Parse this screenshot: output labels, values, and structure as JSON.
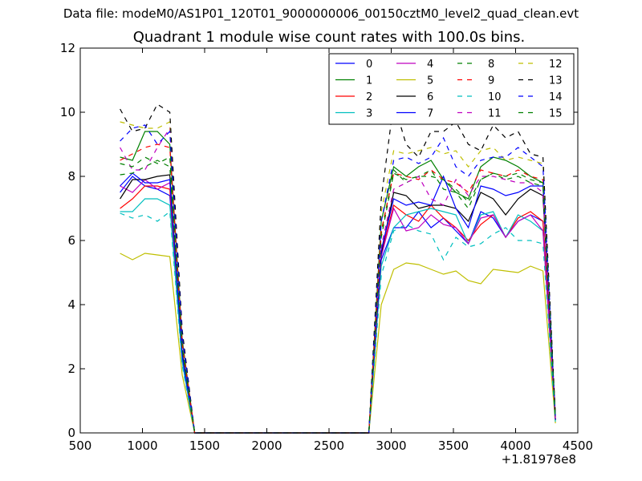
{
  "suptitle": "Data file: modeM0/AS1P01_120T01_9000000006_00150cztM0_level2_quad_clean.evt",
  "chart_data": {
    "type": "line",
    "title": "Quadrant 1 module wise count rates with 100.0s bins.",
    "xlabel": "",
    "ylabel": "",
    "x_offset_label": "+1.81978e8",
    "xlim": [
      500,
      4500
    ],
    "ylim": [
      0,
      12
    ],
    "xticks": [
      500,
      1000,
      1500,
      2000,
      2500,
      3000,
      3500,
      4000,
      4500
    ],
    "yticks": [
      0,
      2,
      4,
      6,
      8,
      10,
      12
    ],
    "grid": false,
    "legend_position": "top-right",
    "x": [
      820,
      920,
      1020,
      1120,
      1220,
      1320,
      1420,
      1520,
      1620,
      1720,
      1820,
      1920,
      2020,
      2120,
      2220,
      2320,
      2420,
      2520,
      2620,
      2720,
      2820,
      2920,
      3020,
      3120,
      3220,
      3320,
      3420,
      3520,
      3620,
      3720,
      3820,
      3920,
      4020,
      4120,
      4220,
      4320
    ],
    "series": [
      {
        "name": "0",
        "color": "#0000ff",
        "dash": "solid",
        "values": [
          7.5,
          8.0,
          7.7,
          7.6,
          7.4,
          2.4,
          0,
          0,
          0,
          0,
          0,
          0,
          0,
          0,
          0,
          0,
          0,
          0,
          0,
          0,
          0,
          5.4,
          6.4,
          6.4,
          6.9,
          6.4,
          6.7,
          6.3,
          5.9,
          6.9,
          6.7,
          6.1,
          6.6,
          6.8,
          6.6,
          0.4
        ]
      },
      {
        "name": "1",
        "color": "#008000",
        "dash": "solid",
        "values": [
          8.6,
          8.5,
          9.4,
          9.4,
          9.0,
          2.9,
          0,
          0,
          0,
          0,
          0,
          0,
          0,
          0,
          0,
          0,
          0,
          0,
          0,
          0,
          0,
          6.6,
          8.3,
          8.0,
          8.3,
          8.5,
          7.9,
          7.5,
          7.3,
          8.3,
          8.6,
          8.5,
          8.3,
          8.0,
          7.8,
          0.5
        ]
      },
      {
        "name": "2",
        "color": "#ff0000",
        "dash": "solid",
        "values": [
          7.0,
          7.3,
          7.7,
          7.7,
          7.6,
          2.3,
          0,
          0,
          0,
          0,
          0,
          0,
          0,
          0,
          0,
          0,
          0,
          0,
          0,
          0,
          0,
          5.6,
          7.1,
          6.8,
          6.6,
          7.1,
          6.7,
          6.4,
          6.0,
          6.5,
          6.8,
          6.1,
          6.7,
          6.9,
          6.6,
          0.4
        ]
      },
      {
        "name": "3",
        "color": "#00bfbf",
        "dash": "solid",
        "values": [
          6.9,
          6.9,
          7.3,
          7.3,
          7.1,
          2.2,
          0,
          0,
          0,
          0,
          0,
          0,
          0,
          0,
          0,
          0,
          0,
          0,
          0,
          0,
          0,
          5.2,
          6.4,
          6.8,
          6.9,
          7.0,
          6.9,
          6.8,
          5.9,
          6.8,
          6.9,
          6.1,
          6.8,
          6.6,
          6.3,
          0.4
        ]
      },
      {
        "name": "4",
        "color": "#bf00bf",
        "dash": "solid",
        "values": [
          7.7,
          7.5,
          7.9,
          7.6,
          7.8,
          2.4,
          0,
          0,
          0,
          0,
          0,
          0,
          0,
          0,
          0,
          0,
          0,
          0,
          0,
          0,
          0,
          5.5,
          7.0,
          6.3,
          6.4,
          6.8,
          6.5,
          6.4,
          5.9,
          6.7,
          6.8,
          6.1,
          6.6,
          6.8,
          6.3,
          0.4
        ]
      },
      {
        "name": "5",
        "color": "#bfbf00",
        "dash": "solid",
        "values": [
          5.6,
          5.4,
          5.6,
          5.55,
          5.5,
          1.8,
          0,
          0,
          0,
          0,
          0,
          0,
          0,
          0,
          0,
          0,
          0,
          0,
          0,
          0,
          0,
          4.0,
          5.1,
          5.3,
          5.25,
          5.1,
          4.95,
          5.05,
          4.75,
          4.65,
          5.1,
          5.05,
          5.0,
          5.2,
          5.05,
          0.3
        ]
      },
      {
        "name": "6",
        "color": "#000000",
        "dash": "solid",
        "values": [
          7.3,
          7.9,
          7.9,
          8.0,
          8.05,
          2.5,
          0,
          0,
          0,
          0,
          0,
          0,
          0,
          0,
          0,
          0,
          0,
          0,
          0,
          0,
          0,
          5.6,
          7.5,
          7.4,
          7.0,
          7.1,
          7.1,
          7.0,
          6.6,
          7.5,
          7.3,
          6.8,
          7.3,
          7.6,
          7.4,
          0.4
        ]
      },
      {
        "name": "7",
        "color": "#0000ff",
        "dash": "solid",
        "values": [
          7.7,
          8.1,
          7.8,
          7.8,
          7.9,
          2.4,
          0,
          0,
          0,
          0,
          0,
          0,
          0,
          0,
          0,
          0,
          0,
          0,
          0,
          0,
          0,
          5.7,
          7.3,
          7.1,
          7.2,
          7.1,
          8.0,
          7.0,
          6.4,
          7.7,
          7.6,
          7.4,
          7.5,
          7.7,
          7.7,
          0.4
        ]
      },
      {
        "name": "8",
        "color": "#008000",
        "dash": "dashed",
        "values": [
          8.05,
          8.1,
          8.3,
          8.5,
          8.3,
          2.6,
          0,
          0,
          0,
          0,
          0,
          0,
          0,
          0,
          0,
          0,
          0,
          0,
          0,
          0,
          0,
          6.2,
          8.2,
          7.8,
          8.0,
          8.2,
          7.6,
          7.5,
          7.0,
          7.9,
          8.1,
          7.9,
          8.0,
          7.8,
          7.7,
          0.5
        ]
      },
      {
        "name": "9",
        "color": "#ff0000",
        "dash": "dashed",
        "values": [
          8.5,
          8.7,
          8.9,
          9.0,
          8.9,
          2.8,
          0,
          0,
          0,
          0,
          0,
          0,
          0,
          0,
          0,
          0,
          0,
          0,
          0,
          0,
          0,
          6.3,
          8.1,
          8.0,
          7.9,
          8.2,
          7.9,
          7.8,
          7.5,
          8.2,
          8.1,
          8.0,
          8.2,
          8.0,
          7.9,
          0.5
        ]
      },
      {
        "name": "10",
        "color": "#00bfbf",
        "dash": "dashed",
        "values": [
          6.85,
          6.7,
          6.8,
          6.6,
          6.9,
          2.1,
          0,
          0,
          0,
          0,
          0,
          0,
          0,
          0,
          0,
          0,
          0,
          0,
          0,
          0,
          0,
          4.9,
          6.3,
          6.5,
          6.3,
          6.2,
          5.4,
          6.1,
          5.8,
          5.9,
          6.2,
          6.4,
          6.0,
          6.0,
          5.9,
          0.35
        ]
      },
      {
        "name": "11",
        "color": "#bf00bf",
        "dash": "dashed",
        "values": [
          8.9,
          8.2,
          8.2,
          8.9,
          9.5,
          2.9,
          0,
          0,
          0,
          0,
          0,
          0,
          0,
          0,
          0,
          0,
          0,
          0,
          0,
          0,
          0,
          5.8,
          7.6,
          7.8,
          8.0,
          7.3,
          7.1,
          7.9,
          7.4,
          8.0,
          8.0,
          7.9,
          7.8,
          7.8,
          7.5,
          0.45
        ]
      },
      {
        "name": "12",
        "color": "#bfbf00",
        "dash": "dashed",
        "values": [
          9.7,
          9.6,
          9.5,
          9.5,
          9.7,
          3.0,
          0,
          0,
          0,
          0,
          0,
          0,
          0,
          0,
          0,
          0,
          0,
          0,
          0,
          0,
          0,
          6.9,
          8.8,
          8.7,
          8.8,
          8.9,
          8.7,
          8.8,
          8.3,
          8.8,
          8.9,
          8.5,
          8.6,
          8.5,
          8.4,
          0.5
        ]
      },
      {
        "name": "13",
        "color": "#000000",
        "dash": "dashed",
        "values": [
          10.1,
          9.4,
          9.5,
          10.25,
          10.0,
          3.2,
          0,
          0,
          0,
          0,
          0,
          0,
          0,
          0,
          0,
          0,
          0,
          0,
          0,
          0,
          0,
          7.3,
          10.3,
          9.0,
          8.6,
          9.4,
          9.4,
          9.7,
          9.0,
          8.8,
          9.6,
          9.2,
          9.4,
          8.7,
          8.6,
          0.55
        ]
      },
      {
        "name": "14",
        "color": "#0000ff",
        "dash": "dashed",
        "values": [
          9.1,
          9.5,
          9.6,
          9.0,
          9.4,
          3.0,
          0,
          0,
          0,
          0,
          0,
          0,
          0,
          0,
          0,
          0,
          0,
          0,
          0,
          0,
          0,
          6.6,
          8.5,
          8.6,
          8.4,
          8.6,
          9.2,
          8.3,
          8.0,
          8.5,
          8.6,
          8.6,
          8.9,
          8.6,
          8.3,
          0.5
        ]
      },
      {
        "name": "15",
        "color": "#008000",
        "dash": "dashed",
        "values": [
          8.4,
          8.3,
          8.6,
          8.4,
          8.6,
          2.7,
          0,
          0,
          0,
          0,
          0,
          0,
          0,
          0,
          0,
          0,
          0,
          0,
          0,
          0,
          0,
          6.1,
          8.1,
          7.9,
          8.0,
          8.0,
          7.9,
          7.6,
          7.2,
          7.9,
          8.1,
          8.0,
          8.1,
          7.9,
          7.8,
          0.45
        ]
      }
    ]
  }
}
